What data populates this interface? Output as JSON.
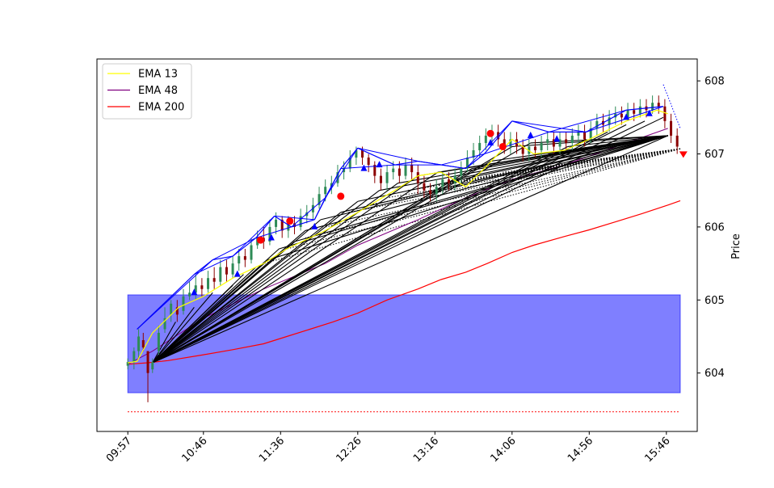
{
  "chart_data": {
    "type": "line",
    "title": "",
    "xlabel": "",
    "ylabel": "Price",
    "y_ticks": [
      604,
      605,
      606,
      607,
      608
    ],
    "ylim": [
      603.2,
      608.3
    ],
    "x_tick_labels": [
      "09:57",
      "10:46",
      "11:36",
      "12:26",
      "13:16",
      "14:06",
      "14:56",
      "15:46"
    ],
    "x_tick_minutes": [
      597,
      646,
      696,
      746,
      796,
      846,
      896,
      946
    ],
    "xlim_minutes": [
      577,
      966
    ],
    "legend_position": "top-left",
    "colors": {
      "ema13": "#ffff00",
      "ema48": "#800080",
      "ema200": "#ff0000",
      "zone": "#0000ff",
      "trendline": "#000000",
      "swing_lines": "#0000ff",
      "candle_up": "#2e8b57",
      "candle_down": "#8b0000"
    },
    "series": [
      {
        "name": "EMA 13",
        "points": [
          [
            597,
            604.14
          ],
          [
            603,
            604.16
          ],
          [
            613,
            604.55
          ],
          [
            630,
            604.9
          ],
          [
            646,
            605.05
          ],
          [
            665,
            605.3
          ],
          [
            685,
            605.5
          ],
          [
            700,
            605.7
          ],
          [
            725,
            605.95
          ],
          [
            746,
            606.2
          ],
          [
            770,
            606.5
          ],
          [
            785,
            606.7
          ],
          [
            800,
            606.75
          ],
          [
            816,
            606.55
          ],
          [
            828,
            606.8
          ],
          [
            846,
            607.2
          ],
          [
            860,
            607.0
          ],
          [
            880,
            607.05
          ],
          [
            896,
            607.2
          ],
          [
            920,
            607.45
          ],
          [
            940,
            607.6
          ],
          [
            947,
            607.55
          ]
        ]
      },
      {
        "name": "EMA 48",
        "points": [
          [
            597,
            604.12
          ],
          [
            613,
            604.3
          ],
          [
            646,
            604.75
          ],
          [
            685,
            605.15
          ],
          [
            725,
            605.5
          ],
          [
            746,
            605.75
          ],
          [
            785,
            606.1
          ],
          [
            816,
            606.4
          ],
          [
            846,
            606.65
          ],
          [
            880,
            606.85
          ],
          [
            920,
            607.15
          ],
          [
            947,
            607.35
          ]
        ]
      },
      {
        "name": "EMA 200",
        "points": [
          [
            597,
            604.12
          ],
          [
            610,
            604.14
          ],
          [
            623,
            604.17
          ],
          [
            646,
            604.25
          ],
          [
            665,
            604.32
          ],
          [
            685,
            604.4
          ],
          [
            700,
            604.5
          ],
          [
            715,
            604.6
          ],
          [
            730,
            604.7
          ],
          [
            746,
            604.82
          ],
          [
            765,
            605.0
          ],
          [
            785,
            605.15
          ],
          [
            800,
            605.28
          ],
          [
            816,
            605.38
          ],
          [
            830,
            605.5
          ],
          [
            846,
            605.65
          ],
          [
            860,
            605.75
          ],
          [
            880,
            605.87
          ],
          [
            896,
            605.96
          ],
          [
            913,
            606.07
          ],
          [
            930,
            606.18
          ],
          [
            947,
            606.3
          ],
          [
            955,
            606.36
          ]
        ]
      }
    ],
    "zone": {
      "x": [
        597,
        955
      ],
      "y": [
        603.73,
        605.07
      ]
    },
    "support_line": {
      "y": 603.47,
      "x": [
        597,
        955
      ]
    },
    "trendline_origin": {
      "x": 613,
      "y": 604.14
    },
    "trendline_targets": [
      [
        628,
        604.7
      ],
      [
        640,
        604.9
      ],
      [
        652,
        605.1
      ],
      [
        665,
        605.2
      ],
      [
        672,
        605.35
      ],
      [
        680,
        605.45
      ],
      [
        688,
        605.55
      ],
      [
        695,
        605.7
      ],
      [
        705,
        605.8
      ],
      [
        712,
        605.95
      ],
      [
        722,
        606.1
      ],
      [
        735,
        606.2
      ],
      [
        746,
        606.35
      ],
      [
        760,
        606.5
      ],
      [
        772,
        606.6
      ],
      [
        785,
        606.7
      ],
      [
        798,
        606.75
      ],
      [
        808,
        606.65
      ],
      [
        820,
        606.8
      ],
      [
        832,
        606.9
      ],
      [
        846,
        607.1
      ],
      [
        858,
        607.15
      ],
      [
        870,
        607.0
      ],
      [
        882,
        607.1
      ],
      [
        894,
        607.2
      ],
      [
        908,
        607.3
      ],
      [
        920,
        607.4
      ],
      [
        932,
        607.45
      ],
      [
        944,
        607.5
      ],
      [
        947,
        607.25
      ]
    ],
    "fan_dotted_origin": {
      "x": 955,
      "y": 607.07
    },
    "fan_dotted_targets": [
      [
        685,
        605.5
      ],
      [
        700,
        605.7
      ],
      [
        712,
        605.85
      ],
      [
        725,
        606.0
      ],
      [
        740,
        606.2
      ],
      [
        752,
        606.3
      ],
      [
        765,
        606.4
      ],
      [
        778,
        606.5
      ],
      [
        790,
        606.55
      ],
      [
        802,
        606.6
      ],
      [
        815,
        606.65
      ],
      [
        828,
        606.7
      ],
      [
        840,
        606.75
      ],
      [
        852,
        606.78
      ],
      [
        865,
        606.82
      ],
      [
        878,
        606.85
      ],
      [
        890,
        606.9
      ],
      [
        902,
        606.92
      ],
      [
        915,
        606.95
      ],
      [
        928,
        606.98
      ]
    ],
    "swing_high_points": [
      [
        603,
        604.6
      ],
      [
        640,
        605.35
      ],
      [
        652,
        605.55
      ],
      [
        665,
        605.6
      ],
      [
        680,
        605.85
      ],
      [
        692,
        606.15
      ],
      [
        703,
        606.0
      ],
      [
        718,
        606.1
      ],
      [
        725,
        606.4
      ],
      [
        735,
        606.8
      ],
      [
        746,
        607.08
      ],
      [
        770,
        606.85
      ],
      [
        785,
        606.9
      ],
      [
        800,
        606.85
      ],
      [
        816,
        606.8
      ],
      [
        828,
        607.0
      ],
      [
        846,
        607.45
      ],
      [
        870,
        607.3
      ],
      [
        894,
        607.3
      ],
      [
        920,
        607.6
      ],
      [
        944,
        607.65
      ]
    ],
    "blue_triangle_markers": [
      [
        640,
        605.1
      ],
      [
        668,
        605.35
      ],
      [
        690,
        605.85
      ],
      [
        718,
        606.0
      ],
      [
        750,
        606.8
      ],
      [
        760,
        606.85
      ],
      [
        832,
        607.15
      ],
      [
        858,
        607.25
      ],
      [
        875,
        607.2
      ],
      [
        920,
        607.5
      ],
      [
        935,
        607.55
      ]
    ],
    "red_marker_circles": [
      [
        683,
        605.82
      ],
      [
        702,
        606.08
      ],
      [
        735,
        606.42
      ],
      [
        832,
        607.28
      ],
      [
        840,
        607.1
      ]
    ],
    "sell_signal_marker": [
      957,
      606.99
    ],
    "candles": [
      [
        597,
        604.1,
        604.15,
        604.05,
        604.2
      ],
      [
        601,
        604.15,
        604.3,
        604.05,
        604.35
      ],
      [
        604,
        604.3,
        604.5,
        604.2,
        604.6
      ],
      [
        607,
        604.45,
        604.35,
        604.3,
        604.55
      ],
      [
        610,
        604.3,
        604.0,
        603.6,
        604.3
      ],
      [
        613,
        604.05,
        604.15,
        604.0,
        604.2
      ],
      [
        617,
        604.3,
        604.55,
        604.25,
        604.65
      ],
      [
        621,
        604.6,
        604.75,
        604.55,
        604.9
      ],
      [
        625,
        604.8,
        604.95,
        604.7,
        605.0
      ],
      [
        629,
        604.9,
        604.8,
        604.7,
        605.0
      ],
      [
        633,
        604.85,
        605.05,
        604.8,
        605.15
      ],
      [
        637,
        605.05,
        605.1,
        605.0,
        605.25
      ],
      [
        641,
        605.1,
        605.2,
        605.0,
        605.35
      ],
      [
        645,
        605.2,
        605.15,
        605.05,
        605.3
      ],
      [
        649,
        605.15,
        605.3,
        605.1,
        605.4
      ],
      [
        653,
        605.3,
        605.25,
        605.15,
        605.45
      ],
      [
        657,
        605.25,
        605.45,
        605.2,
        605.55
      ],
      [
        661,
        605.45,
        605.35,
        605.25,
        605.55
      ],
      [
        665,
        605.35,
        605.5,
        605.3,
        605.6
      ],
      [
        669,
        605.5,
        605.6,
        605.4,
        605.7
      ],
      [
        673,
        605.6,
        605.55,
        605.45,
        605.7
      ],
      [
        677,
        605.55,
        605.75,
        605.5,
        605.85
      ],
      [
        681,
        605.75,
        605.85,
        605.7,
        605.95
      ],
      [
        685,
        605.85,
        605.8,
        605.7,
        606.0
      ],
      [
        689,
        605.8,
        606.0,
        605.75,
        606.1
      ],
      [
        693,
        606.0,
        606.1,
        605.9,
        606.2
      ],
      [
        697,
        606.1,
        605.95,
        605.85,
        606.15
      ],
      [
        701,
        605.95,
        606.05,
        605.85,
        606.15
      ],
      [
        705,
        606.05,
        606.0,
        605.9,
        606.15
      ],
      [
        709,
        606.0,
        606.15,
        605.95,
        606.25
      ],
      [
        713,
        606.15,
        606.2,
        606.05,
        606.3
      ],
      [
        717,
        606.2,
        606.3,
        606.1,
        606.4
      ],
      [
        721,
        606.3,
        606.45,
        606.25,
        606.55
      ],
      [
        725,
        606.45,
        606.55,
        606.35,
        606.65
      ],
      [
        729,
        606.55,
        606.6,
        606.45,
        606.7
      ],
      [
        733,
        606.6,
        606.75,
        606.55,
        606.85
      ],
      [
        737,
        606.75,
        606.8,
        606.65,
        606.9
      ],
      [
        741,
        606.8,
        606.95,
        606.75,
        607.05
      ],
      [
        745,
        606.95,
        607.05,
        606.85,
        607.1
      ],
      [
        749,
        607.05,
        606.95,
        606.85,
        607.1
      ],
      [
        753,
        606.95,
        606.85,
        606.75,
        607.0
      ],
      [
        757,
        606.85,
        606.7,
        606.6,
        606.9
      ],
      [
        761,
        606.7,
        606.6,
        606.5,
        606.8
      ],
      [
        765,
        606.6,
        606.75,
        606.5,
        606.85
      ],
      [
        769,
        606.75,
        606.8,
        606.65,
        606.9
      ],
      [
        773,
        606.8,
        606.7,
        606.6,
        606.9
      ],
      [
        777,
        606.7,
        606.85,
        606.65,
        606.95
      ],
      [
        781,
        606.85,
        606.75,
        606.65,
        606.95
      ],
      [
        785,
        606.75,
        606.6,
        606.45,
        606.85
      ],
      [
        789,
        606.6,
        606.5,
        606.4,
        606.7
      ],
      [
        793,
        606.5,
        606.45,
        606.35,
        606.6
      ],
      [
        797,
        606.45,
        606.55,
        606.35,
        606.65
      ],
      [
        801,
        606.55,
        606.65,
        606.45,
        606.75
      ],
      [
        805,
        606.65,
        606.6,
        606.5,
        606.75
      ],
      [
        809,
        606.6,
        606.7,
        606.5,
        606.8
      ],
      [
        813,
        606.7,
        606.8,
        606.6,
        606.9
      ],
      [
        817,
        606.8,
        606.95,
        606.75,
        607.05
      ],
      [
        821,
        606.95,
        607.05,
        606.85,
        607.15
      ],
      [
        825,
        607.05,
        607.15,
        606.95,
        607.25
      ],
      [
        829,
        607.15,
        607.25,
        607.05,
        607.35
      ],
      [
        833,
        607.25,
        607.3,
        607.15,
        607.4
      ],
      [
        837,
        607.3,
        607.2,
        607.1,
        607.4
      ],
      [
        841,
        607.2,
        607.1,
        607.0,
        607.3
      ],
      [
        845,
        607.1,
        607.2,
        607.0,
        607.3
      ],
      [
        849,
        607.2,
        607.1,
        607.0,
        607.3
      ],
      [
        853,
        607.1,
        607.0,
        606.9,
        607.2
      ],
      [
        857,
        607.0,
        607.1,
        606.9,
        607.2
      ],
      [
        861,
        607.1,
        607.05,
        606.95,
        607.2
      ],
      [
        865,
        607.05,
        607.15,
        606.95,
        607.25
      ],
      [
        869,
        607.15,
        607.2,
        607.05,
        607.3
      ],
      [
        873,
        607.2,
        607.1,
        607.0,
        607.3
      ],
      [
        877,
        607.1,
        607.2,
        607.0,
        607.3
      ],
      [
        881,
        607.2,
        607.15,
        607.05,
        607.3
      ],
      [
        885,
        607.15,
        607.25,
        607.05,
        607.35
      ],
      [
        889,
        607.25,
        607.3,
        607.15,
        607.4
      ],
      [
        893,
        607.3,
        607.2,
        607.1,
        607.4
      ],
      [
        897,
        607.2,
        607.35,
        607.15,
        607.45
      ],
      [
        901,
        607.35,
        607.45,
        607.25,
        607.55
      ],
      [
        905,
        607.45,
        607.4,
        607.3,
        607.55
      ],
      [
        909,
        607.4,
        607.5,
        607.3,
        607.6
      ],
      [
        913,
        607.5,
        607.55,
        607.4,
        607.65
      ],
      [
        917,
        607.55,
        607.5,
        607.4,
        607.65
      ],
      [
        921,
        607.5,
        607.6,
        607.45,
        607.7
      ],
      [
        925,
        607.6,
        607.55,
        607.45,
        607.7
      ],
      [
        929,
        607.55,
        607.65,
        607.5,
        607.75
      ],
      [
        933,
        607.65,
        607.6,
        607.5,
        607.75
      ],
      [
        937,
        607.6,
        607.7,
        607.55,
        607.8
      ],
      [
        941,
        607.7,
        607.65,
        607.55,
        607.8
      ],
      [
        945,
        607.65,
        607.45,
        607.35,
        607.75
      ],
      [
        949,
        607.45,
        607.25,
        607.15,
        607.55
      ],
      [
        953,
        607.25,
        607.1,
        607.0,
        607.35
      ]
    ]
  }
}
